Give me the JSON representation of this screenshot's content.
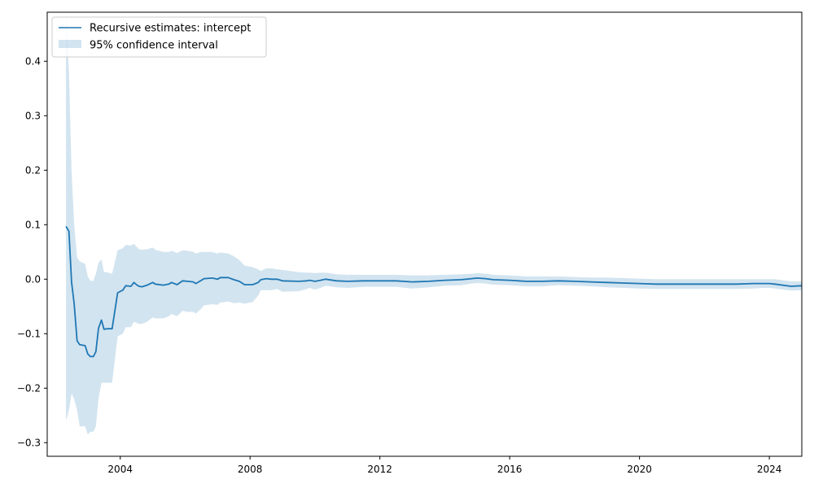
{
  "chart_data": {
    "type": "line",
    "title": "",
    "xlabel": "",
    "ylabel": "",
    "xlim": [
      2001.75,
      2025.0
    ],
    "ylim": [
      -0.325,
      0.49
    ],
    "x_ticks": [
      2004,
      2008,
      2012,
      2016,
      2020,
      2024
    ],
    "x_tick_labels": [
      "2004",
      "2008",
      "2012",
      "2016",
      "2020",
      "2024"
    ],
    "y_ticks": [
      -0.3,
      -0.2,
      -0.1,
      0.0,
      0.1,
      0.2,
      0.3,
      0.4
    ],
    "y_tick_labels": [
      "−0.3",
      "−0.2",
      "−0.1",
      "0.0",
      "0.1",
      "0.2",
      "0.3",
      "0.4"
    ],
    "grid": false,
    "legend_position": "top-left",
    "colors": {
      "line": "#1f77b4",
      "band": "#1f77b4",
      "band_opacity": 0.2
    },
    "series": [
      {
        "name": "Recursive estimates: intercept",
        "kind": "line",
        "points": [
          [
            2002.33,
            0.097
          ],
          [
            2002.42,
            0.088
          ],
          [
            2002.5,
            -0.005
          ],
          [
            2002.58,
            -0.045
          ],
          [
            2002.67,
            -0.113
          ],
          [
            2002.75,
            -0.12
          ],
          [
            2002.92,
            -0.122
          ],
          [
            2003.0,
            -0.137
          ],
          [
            2003.08,
            -0.142
          ],
          [
            2003.17,
            -0.142
          ],
          [
            2003.25,
            -0.133
          ],
          [
            2003.33,
            -0.09
          ],
          [
            2003.42,
            -0.075
          ],
          [
            2003.5,
            -0.092
          ],
          [
            2003.58,
            -0.091
          ],
          [
            2003.75,
            -0.091
          ],
          [
            2003.83,
            -0.06
          ],
          [
            2003.92,
            -0.025
          ],
          [
            2004.08,
            -0.02
          ],
          [
            2004.17,
            -0.012
          ],
          [
            2004.33,
            -0.013
          ],
          [
            2004.42,
            -0.006
          ],
          [
            2004.5,
            -0.01
          ],
          [
            2004.58,
            -0.013
          ],
          [
            2004.67,
            -0.014
          ],
          [
            2004.83,
            -0.011
          ],
          [
            2005.0,
            -0.006
          ],
          [
            2005.08,
            -0.009
          ],
          [
            2005.33,
            -0.011
          ],
          [
            2005.5,
            -0.009
          ],
          [
            2005.58,
            -0.006
          ],
          [
            2005.75,
            -0.01
          ],
          [
            2005.92,
            -0.003
          ],
          [
            2006.08,
            -0.004
          ],
          [
            2006.25,
            -0.005
          ],
          [
            2006.33,
            -0.008
          ],
          [
            2006.5,
            -0.002
          ],
          [
            2006.58,
            0.001
          ],
          [
            2006.83,
            0.002
          ],
          [
            2007.0,
            0.0
          ],
          [
            2007.08,
            0.003
          ],
          [
            2007.33,
            0.003
          ],
          [
            2007.5,
            -0.001
          ],
          [
            2007.67,
            -0.004
          ],
          [
            2007.83,
            -0.01
          ],
          [
            2008.08,
            -0.01
          ],
          [
            2008.25,
            -0.006
          ],
          [
            2008.33,
            -0.001
          ],
          [
            2008.5,
            0.001
          ],
          [
            2008.67,
            0.0
          ],
          [
            2008.83,
            0.0
          ],
          [
            2009.0,
            -0.003
          ],
          [
            2009.5,
            -0.004
          ],
          [
            2009.75,
            -0.003
          ],
          [
            2009.83,
            -0.002
          ],
          [
            2010.0,
            -0.004
          ],
          [
            2010.17,
            -0.002
          ],
          [
            2010.33,
            0.0
          ],
          [
            2010.67,
            -0.003
          ],
          [
            2011.0,
            -0.004
          ],
          [
            2011.5,
            -0.003
          ],
          [
            2012.0,
            -0.003
          ],
          [
            2012.5,
            -0.003
          ],
          [
            2013.0,
            -0.005
          ],
          [
            2013.5,
            -0.004
          ],
          [
            2014.0,
            -0.002
          ],
          [
            2014.5,
            -0.001
          ],
          [
            2014.83,
            0.001
          ],
          [
            2015.0,
            0.002
          ],
          [
            2015.25,
            0.001
          ],
          [
            2015.5,
            -0.001
          ],
          [
            2016.0,
            -0.002
          ],
          [
            2016.5,
            -0.004
          ],
          [
            2017.0,
            -0.004
          ],
          [
            2017.5,
            -0.003
          ],
          [
            2018.0,
            -0.004
          ],
          [
            2018.5,
            -0.005
          ],
          [
            2019.0,
            -0.006
          ],
          [
            2019.5,
            -0.007
          ],
          [
            2020.0,
            -0.008
          ],
          [
            2020.5,
            -0.009
          ],
          [
            2021.0,
            -0.009
          ],
          [
            2021.5,
            -0.009
          ],
          [
            2022.0,
            -0.009
          ],
          [
            2022.5,
            -0.009
          ],
          [
            2023.0,
            -0.009
          ],
          [
            2023.5,
            -0.008
          ],
          [
            2023.83,
            -0.008
          ],
          [
            2024.0,
            -0.008
          ],
          [
            2024.17,
            -0.009
          ],
          [
            2024.67,
            -0.013
          ],
          [
            2025.0,
            -0.012
          ]
        ]
      },
      {
        "name": "95% confidence interval",
        "kind": "band",
        "upper": [
          [
            2002.33,
            0.49
          ],
          [
            2002.42,
            0.38
          ],
          [
            2002.5,
            0.2
          ],
          [
            2002.58,
            0.1
          ],
          [
            2002.67,
            0.04
          ],
          [
            2002.75,
            0.033
          ],
          [
            2002.92,
            0.028
          ],
          [
            2003.0,
            0.005
          ],
          [
            2003.08,
            -0.003
          ],
          [
            2003.17,
            -0.003
          ],
          [
            2003.25,
            0.01
          ],
          [
            2003.33,
            0.03
          ],
          [
            2003.42,
            0.037
          ],
          [
            2003.5,
            0.013
          ],
          [
            2003.58,
            0.013
          ],
          [
            2003.75,
            0.01
          ],
          [
            2003.83,
            0.03
          ],
          [
            2003.92,
            0.053
          ],
          [
            2004.08,
            0.057
          ],
          [
            2004.17,
            0.063
          ],
          [
            2004.33,
            0.062
          ],
          [
            2004.42,
            0.065
          ],
          [
            2004.5,
            0.06
          ],
          [
            2004.58,
            0.055
          ],
          [
            2004.67,
            0.054
          ],
          [
            2004.83,
            0.055
          ],
          [
            2005.0,
            0.058
          ],
          [
            2005.08,
            0.054
          ],
          [
            2005.33,
            0.05
          ],
          [
            2005.5,
            0.05
          ],
          [
            2005.58,
            0.052
          ],
          [
            2005.75,
            0.048
          ],
          [
            2005.92,
            0.053
          ],
          [
            2006.08,
            0.052
          ],
          [
            2006.25,
            0.05
          ],
          [
            2006.33,
            0.047
          ],
          [
            2006.5,
            0.05
          ],
          [
            2006.58,
            0.05
          ],
          [
            2006.83,
            0.05
          ],
          [
            2007.0,
            0.047
          ],
          [
            2007.08,
            0.049
          ],
          [
            2007.33,
            0.047
          ],
          [
            2007.5,
            0.042
          ],
          [
            2007.67,
            0.035
          ],
          [
            2007.83,
            0.025
          ],
          [
            2008.08,
            0.022
          ],
          [
            2008.25,
            0.018
          ],
          [
            2008.33,
            0.015
          ],
          [
            2008.5,
            0.02
          ],
          [
            2008.67,
            0.02
          ],
          [
            2008.83,
            0.018
          ],
          [
            2009.0,
            0.017
          ],
          [
            2009.5,
            0.013
          ],
          [
            2009.75,
            0.012
          ],
          [
            2009.83,
            0.012
          ],
          [
            2010.0,
            0.011
          ],
          [
            2010.17,
            0.012
          ],
          [
            2010.33,
            0.012
          ],
          [
            2010.67,
            0.009
          ],
          [
            2011.0,
            0.008
          ],
          [
            2011.5,
            0.008
          ],
          [
            2012.0,
            0.008
          ],
          [
            2012.5,
            0.008
          ],
          [
            2013.0,
            0.007
          ],
          [
            2013.5,
            0.007
          ],
          [
            2014.0,
            0.008
          ],
          [
            2014.5,
            0.009
          ],
          [
            2014.83,
            0.01
          ],
          [
            2015.0,
            0.011
          ],
          [
            2015.25,
            0.01
          ],
          [
            2015.5,
            0.008
          ],
          [
            2016.0,
            0.007
          ],
          [
            2016.5,
            0.005
          ],
          [
            2017.0,
            0.005
          ],
          [
            2017.5,
            0.005
          ],
          [
            2018.0,
            0.004
          ],
          [
            2018.5,
            0.003
          ],
          [
            2019.0,
            0.003
          ],
          [
            2019.5,
            0.002
          ],
          [
            2020.0,
            0.001
          ],
          [
            2020.5,
            0.0
          ],
          [
            2021.0,
            0.0
          ],
          [
            2021.5,
            0.0
          ],
          [
            2022.0,
            0.0
          ],
          [
            2022.5,
            0.0
          ],
          [
            2023.0,
            0.0
          ],
          [
            2023.5,
            0.0
          ],
          [
            2023.83,
            0.0
          ],
          [
            2024.0,
            0.0
          ],
          [
            2024.17,
            0.0
          ],
          [
            2024.67,
            -0.004
          ],
          [
            2025.0,
            -0.004
          ]
        ],
        "lower": [
          [
            2002.33,
            -0.26
          ],
          [
            2002.42,
            -0.24
          ],
          [
            2002.5,
            -0.21
          ],
          [
            2002.58,
            -0.22
          ],
          [
            2002.67,
            -0.24
          ],
          [
            2002.75,
            -0.27
          ],
          [
            2002.92,
            -0.27
          ],
          [
            2003.0,
            -0.285
          ],
          [
            2003.08,
            -0.28
          ],
          [
            2003.17,
            -0.28
          ],
          [
            2003.25,
            -0.27
          ],
          [
            2003.33,
            -0.22
          ],
          [
            2003.42,
            -0.19
          ],
          [
            2003.5,
            -0.19
          ],
          [
            2003.58,
            -0.19
          ],
          [
            2003.75,
            -0.19
          ],
          [
            2003.83,
            -0.15
          ],
          [
            2003.92,
            -0.105
          ],
          [
            2004.08,
            -0.1
          ],
          [
            2004.17,
            -0.088
          ],
          [
            2004.33,
            -0.088
          ],
          [
            2004.42,
            -0.078
          ],
          [
            2004.5,
            -0.08
          ],
          [
            2004.58,
            -0.082
          ],
          [
            2004.67,
            -0.082
          ],
          [
            2004.83,
            -0.078
          ],
          [
            2005.0,
            -0.07
          ],
          [
            2005.08,
            -0.072
          ],
          [
            2005.33,
            -0.072
          ],
          [
            2005.5,
            -0.068
          ],
          [
            2005.58,
            -0.064
          ],
          [
            2005.75,
            -0.068
          ],
          [
            2005.92,
            -0.058
          ],
          [
            2006.08,
            -0.06
          ],
          [
            2006.25,
            -0.06
          ],
          [
            2006.33,
            -0.063
          ],
          [
            2006.5,
            -0.054
          ],
          [
            2006.58,
            -0.048
          ],
          [
            2006.83,
            -0.046
          ],
          [
            2007.0,
            -0.047
          ],
          [
            2007.08,
            -0.043
          ],
          [
            2007.33,
            -0.041
          ],
          [
            2007.5,
            -0.044
          ],
          [
            2007.67,
            -0.043
          ],
          [
            2007.83,
            -0.045
          ],
          [
            2008.08,
            -0.042
          ],
          [
            2008.25,
            -0.03
          ],
          [
            2008.33,
            -0.02
          ],
          [
            2008.5,
            -0.02
          ],
          [
            2008.67,
            -0.02
          ],
          [
            2008.83,
            -0.018
          ],
          [
            2009.0,
            -0.023
          ],
          [
            2009.5,
            -0.022
          ],
          [
            2009.75,
            -0.018
          ],
          [
            2009.83,
            -0.016
          ],
          [
            2010.0,
            -0.019
          ],
          [
            2010.17,
            -0.016
          ],
          [
            2010.33,
            -0.012
          ],
          [
            2010.67,
            -0.015
          ],
          [
            2011.0,
            -0.016
          ],
          [
            2011.5,
            -0.014
          ],
          [
            2012.0,
            -0.014
          ],
          [
            2012.5,
            -0.014
          ],
          [
            2013.0,
            -0.017
          ],
          [
            2013.5,
            -0.015
          ],
          [
            2014.0,
            -0.012
          ],
          [
            2014.5,
            -0.011
          ],
          [
            2014.83,
            -0.008
          ],
          [
            2015.0,
            -0.007
          ],
          [
            2015.25,
            -0.008
          ],
          [
            2015.5,
            -0.01
          ],
          [
            2016.0,
            -0.011
          ],
          [
            2016.5,
            -0.013
          ],
          [
            2017.0,
            -0.013
          ],
          [
            2017.5,
            -0.011
          ],
          [
            2018.0,
            -0.012
          ],
          [
            2018.5,
            -0.013
          ],
          [
            2019.0,
            -0.015
          ],
          [
            2019.5,
            -0.016
          ],
          [
            2020.0,
            -0.017
          ],
          [
            2020.5,
            -0.018
          ],
          [
            2021.0,
            -0.018
          ],
          [
            2021.5,
            -0.018
          ],
          [
            2022.0,
            -0.018
          ],
          [
            2022.5,
            -0.018
          ],
          [
            2023.0,
            -0.018
          ],
          [
            2023.5,
            -0.017
          ],
          [
            2023.83,
            -0.016
          ],
          [
            2024.0,
            -0.016
          ],
          [
            2024.17,
            -0.017
          ],
          [
            2024.67,
            -0.021
          ],
          [
            2025.0,
            -0.02
          ]
        ]
      }
    ]
  }
}
